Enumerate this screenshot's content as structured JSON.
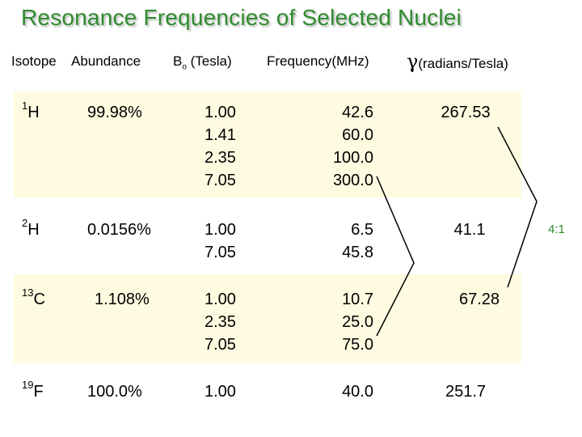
{
  "title": "Resonance Frequencies of Selected Nuclei",
  "headers": {
    "isotope": "Isotope",
    "abundance": "Abundance",
    "b0_base": "B",
    "b0_sub": "o",
    "b0_unit": " (Tesla)",
    "frequency": "Frequency(MHz)",
    "gamma_symbol": "γ",
    "gamma_unit": "(radians/Tesla)"
  },
  "rows": [
    {
      "mass": "1",
      "element": "H",
      "abundance": "99.98%",
      "b0": [
        "1.00",
        "1.41",
        "2.35",
        "7.05"
      ],
      "freq": [
        "42.6",
        "60.0",
        "100.0",
        "300.0"
      ],
      "gamma": "267.53"
    },
    {
      "mass": "2",
      "element": "H",
      "abundance": "0.0156%",
      "b0": [
        "1.00",
        "7.05"
      ],
      "freq": [
        "6.5",
        "45.8"
      ],
      "gamma": "41.1"
    },
    {
      "mass": "13",
      "element": "C",
      "abundance": "1.108%",
      "b0": [
        "1.00",
        "2.35",
        "7.05"
      ],
      "freq": [
        "10.7",
        "25.0",
        "75.0"
      ],
      "gamma": "67.28"
    },
    {
      "mass": "19",
      "element": "F",
      "abundance": "100.0%",
      "b0": [
        "1.00"
      ],
      "freq": [
        "40.0"
      ],
      "gamma": "251.7"
    }
  ],
  "annotation": "4:1",
  "colors": {
    "title": "#2e8b2e",
    "band": "#fefbe0",
    "line": "#000000"
  }
}
